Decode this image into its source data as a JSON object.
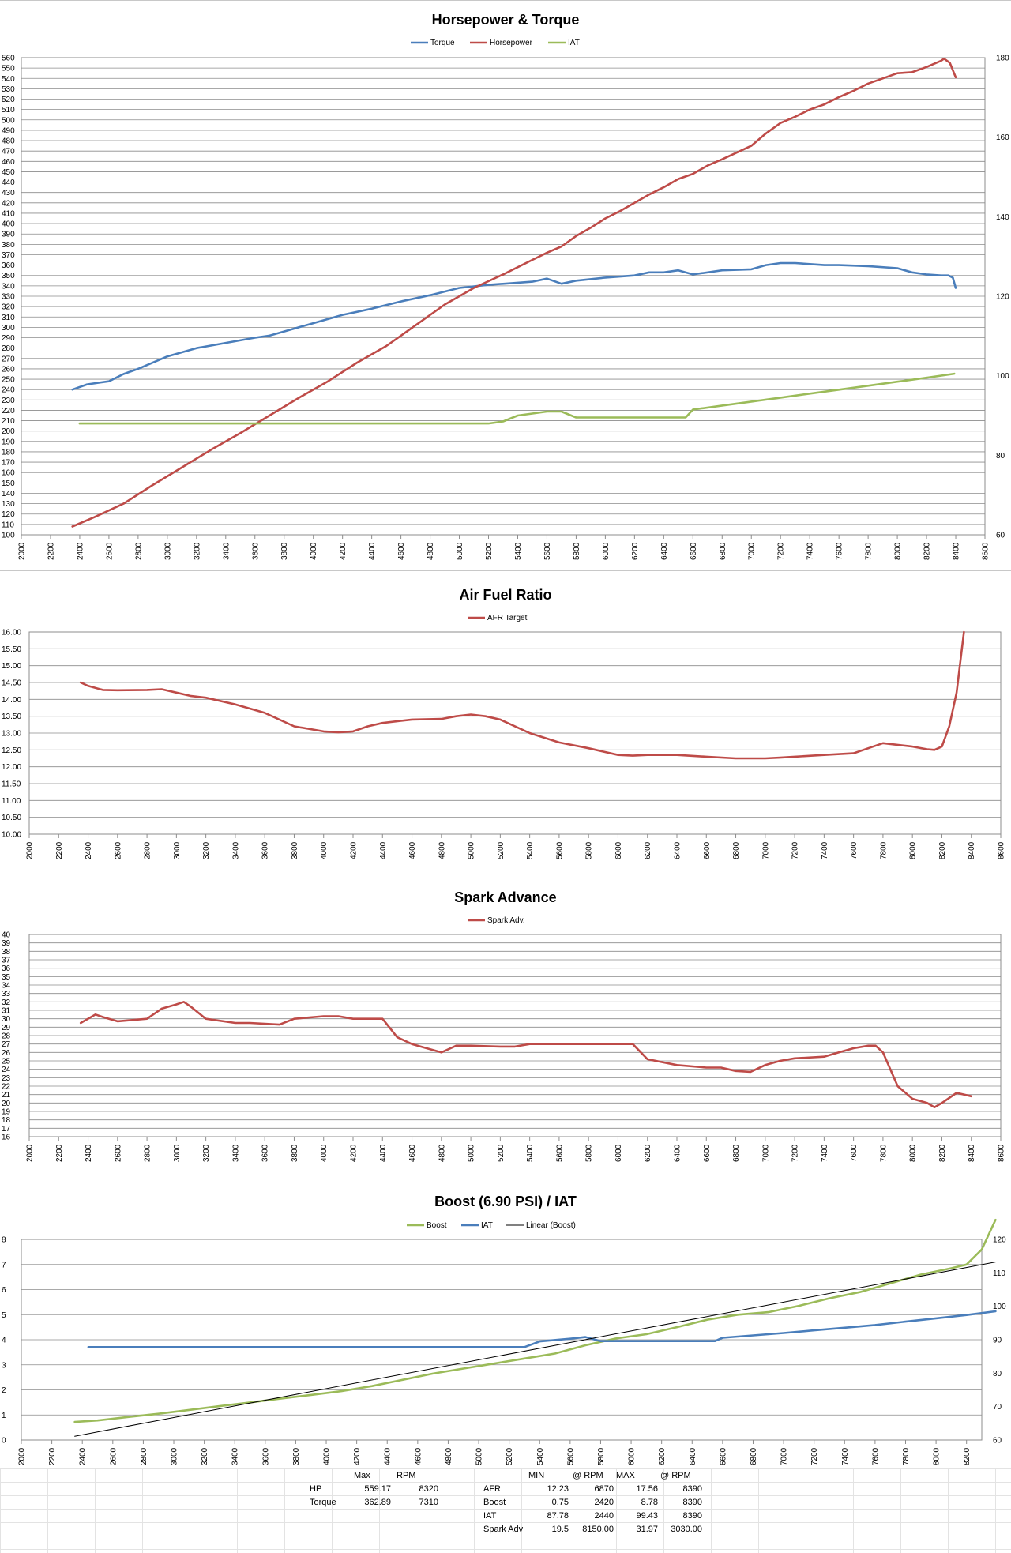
{
  "chart_data": [
    {
      "type": "line",
      "title": "Horsepower & Torque",
      "legend_position": "top-center",
      "grid": true,
      "xlim": [
        2000,
        8600
      ],
      "x_ticks": [
        2000,
        2200,
        2400,
        2600,
        2800,
        3000,
        3200,
        3400,
        3600,
        3800,
        4000,
        4200,
        4400,
        4600,
        4800,
        5000,
        5200,
        5400,
        5600,
        5800,
        6000,
        6200,
        6400,
        6600,
        6800,
        7000,
        7200,
        7400,
        7600,
        7800,
        8000,
        8200,
        8400,
        8600
      ],
      "ylim": [
        100,
        560
      ],
      "y_ticks": [
        100,
        110,
        120,
        130,
        140,
        150,
        160,
        170,
        180,
        190,
        200,
        210,
        220,
        230,
        240,
        250,
        260,
        270,
        280,
        290,
        300,
        310,
        320,
        330,
        340,
        350,
        360,
        370,
        380,
        390,
        400,
        410,
        420,
        430,
        440,
        450,
        460,
        470,
        480,
        490,
        500,
        510,
        520,
        530,
        540,
        550,
        560
      ],
      "y2lim": [
        60,
        180
      ],
      "y2_ticks": [
        60,
        80,
        100,
        120,
        140,
        160,
        180
      ],
      "series": [
        {
          "name": "Torque",
          "axis": "left",
          "color": "#4a7ebb",
          "x": [
            2350,
            2450,
            2600,
            2700,
            2800,
            3000,
            3200,
            3400,
            3600,
            3700,
            3800,
            4000,
            4200,
            4400,
            4600,
            4800,
            5000,
            5200,
            5400,
            5500,
            5600,
            5700,
            5800,
            6000,
            6200,
            6300,
            6400,
            6500,
            6600,
            6800,
            7000,
            7100,
            7200,
            7300,
            7400,
            7500,
            7600,
            7800,
            8000,
            8100,
            8200,
            8300,
            8350,
            8380,
            8400
          ],
          "y": [
            240,
            245,
            248,
            255,
            260,
            272,
            280,
            285,
            290,
            292,
            296,
            304,
            312,
            318,
            325,
            331,
            338,
            341,
            343,
            344,
            347,
            342,
            345,
            348,
            350,
            353,
            353,
            355,
            351,
            355,
            356,
            360,
            362,
            362,
            361,
            360,
            360,
            359,
            357,
            353,
            351,
            350,
            350,
            348,
            338
          ]
        },
        {
          "name": "Horsepower",
          "axis": "left",
          "color": "#be4b48",
          "x": [
            2350,
            2500,
            2700,
            2900,
            3100,
            3300,
            3500,
            3700,
            3900,
            4100,
            4300,
            4500,
            4700,
            4900,
            5100,
            5300,
            5500,
            5600,
            5700,
            5800,
            5900,
            6000,
            6100,
            6200,
            6300,
            6400,
            6500,
            6600,
            6700,
            6800,
            7000,
            7100,
            7200,
            7300,
            7400,
            7500,
            7600,
            7700,
            7800,
            7900,
            8000,
            8100,
            8200,
            8300,
            8320,
            8360,
            8400
          ],
          "y": [
            108,
            117,
            130,
            148,
            165,
            182,
            198,
            215,
            232,
            248,
            266,
            282,
            302,
            322,
            338,
            351,
            365,
            372,
            378,
            388,
            396,
            405,
            412,
            420,
            428,
            435,
            443,
            448,
            456,
            462,
            475,
            487,
            497,
            503,
            510,
            515,
            522,
            528,
            535,
            540,
            545,
            546,
            551,
            557,
            559,
            555,
            541
          ]
        },
        {
          "name": "IAT",
          "axis": "right",
          "color": "#9bbb59",
          "x": [
            2400,
            2800,
            3200,
            3600,
            4000,
            4400,
            4800,
            5200,
            5300,
            5400,
            5600,
            5700,
            5800,
            6000,
            6200,
            6400,
            6550,
            6600,
            6800,
            7000,
            7200,
            7400,
            7600,
            7800,
            8000,
            8200,
            8390
          ],
          "y": [
            88,
            88,
            88,
            88,
            88,
            88,
            88,
            88,
            88.5,
            90,
            91,
            91,
            89.5,
            89.5,
            89.5,
            89.5,
            89.5,
            91.5,
            92.5,
            93.5,
            94.5,
            95.5,
            96.5,
            97.5,
            98.5,
            99.5,
            100.5
          ]
        }
      ]
    },
    {
      "type": "line",
      "title": "Air Fuel Ratio",
      "legend_position": "top-center",
      "grid": true,
      "xlim": [
        2000,
        8600
      ],
      "x_ticks": [
        2000,
        2200,
        2400,
        2600,
        2800,
        3000,
        3200,
        3400,
        3600,
        3800,
        4000,
        4200,
        4400,
        4600,
        4800,
        5000,
        5200,
        5400,
        5600,
        5800,
        6000,
        6200,
        6400,
        6600,
        6800,
        7000,
        7200,
        7400,
        7600,
        7800,
        8000,
        8200,
        8400,
        8600
      ],
      "ylim": [
        10,
        16
      ],
      "y_ticks": [
        "10.00",
        "10.50",
        "11.00",
        "11.50",
        "12.00",
        "12.50",
        "13.00",
        "13.50",
        "14.00",
        "14.50",
        "15.00",
        "15.50",
        "16.00"
      ],
      "series": [
        {
          "name": "AFR Target",
          "color": "#be4b48",
          "x": [
            2350,
            2400,
            2500,
            2600,
            2800,
            2900,
            3000,
            3100,
            3200,
            3400,
            3600,
            3800,
            4000,
            4100,
            4200,
            4300,
            4400,
            4600,
            4800,
            4900,
            5000,
            5100,
            5200,
            5400,
            5600,
            5800,
            6000,
            6100,
            6200,
            6400,
            6600,
            6800,
            6900,
            7000,
            7100,
            7200,
            7400,
            7600,
            7700,
            7800,
            8000,
            8100,
            8150,
            8200,
            8250,
            8300,
            8350
          ],
          "y": [
            14.5,
            14.4,
            14.28,
            14.27,
            14.28,
            14.3,
            14.2,
            14.1,
            14.05,
            13.85,
            13.6,
            13.2,
            13.05,
            13.02,
            13.05,
            13.2,
            13.3,
            13.4,
            13.42,
            13.5,
            13.55,
            13.5,
            13.4,
            13.0,
            12.72,
            12.55,
            12.35,
            12.33,
            12.35,
            12.35,
            12.3,
            12.25,
            12.25,
            12.25,
            12.27,
            12.3,
            12.35,
            12.4,
            12.55,
            12.7,
            12.6,
            12.52,
            12.5,
            12.6,
            13.2,
            14.2,
            16.0
          ]
        }
      ]
    },
    {
      "type": "line",
      "title": "Spark Advance",
      "legend_position": "top-center",
      "grid": true,
      "xlim": [
        2000,
        8600
      ],
      "x_ticks": [
        2000,
        2200,
        2400,
        2600,
        2800,
        3000,
        3200,
        3400,
        3600,
        3800,
        4000,
        4200,
        4400,
        4600,
        4800,
        5000,
        5200,
        5400,
        5600,
        5800,
        6000,
        6200,
        6400,
        6600,
        6800,
        7000,
        7200,
        7400,
        7600,
        7800,
        8000,
        8200,
        8400,
        8600
      ],
      "ylim": [
        16,
        40
      ],
      "y_ticks": [
        16,
        17,
        18,
        19,
        20,
        21,
        22,
        23,
        24,
        25,
        26,
        27,
        28,
        29,
        30,
        31,
        32,
        33,
        34,
        35,
        36,
        37,
        38,
        39,
        40
      ],
      "series": [
        {
          "name": "Spark Adv.",
          "color": "#be4b48",
          "x": [
            2350,
            2450,
            2500,
            2600,
            2800,
            2900,
            3000,
            3050,
            3100,
            3200,
            3400,
            3500,
            3700,
            3800,
            4000,
            4100,
            4200,
            4400,
            4500,
            4600,
            4800,
            4900,
            5000,
            5200,
            5300,
            5400,
            5600,
            5800,
            6000,
            6100,
            6200,
            6400,
            6600,
            6700,
            6800,
            6900,
            7000,
            7100,
            7200,
            7400,
            7500,
            7600,
            7700,
            7750,
            7800,
            7900,
            8000,
            8100,
            8150,
            8200,
            8300,
            8400
          ],
          "y": [
            29.5,
            30.5,
            30.2,
            29.7,
            30.0,
            31.2,
            31.7,
            32.0,
            31.4,
            30.0,
            29.5,
            29.5,
            29.3,
            30.0,
            30.3,
            30.3,
            30.0,
            30.0,
            27.8,
            27.0,
            26.0,
            26.8,
            26.8,
            26.7,
            26.7,
            27.0,
            27.0,
            27.0,
            27.0,
            27.0,
            25.2,
            24.5,
            24.2,
            24.2,
            23.8,
            23.7,
            24.5,
            25.0,
            25.3,
            25.5,
            26.0,
            26.5,
            26.8,
            26.8,
            26.0,
            22.0,
            20.5,
            20.0,
            19.5,
            20.0,
            21.2,
            20.8
          ]
        }
      ]
    },
    {
      "type": "line",
      "title": "Boost (6.90 PSI) / IAT",
      "legend_position": "top-center",
      "grid": true,
      "xlim": [
        2000,
        8300
      ],
      "x_ticks": [
        2000,
        2200,
        2400,
        2600,
        2800,
        3000,
        3200,
        3400,
        3600,
        3800,
        4000,
        4200,
        4400,
        4600,
        4800,
        5000,
        5200,
        5400,
        5600,
        5800,
        6000,
        6200,
        6400,
        6600,
        6800,
        7000,
        7200,
        7400,
        7600,
        7800,
        8000,
        8200
      ],
      "ylim": [
        0,
        8
      ],
      "y_ticks": [
        0,
        1,
        2,
        3,
        4,
        5,
        6,
        7,
        8
      ],
      "y2lim": [
        60,
        120
      ],
      "y2_ticks": [
        60,
        70,
        80,
        90,
        100,
        110,
        120
      ],
      "series": [
        {
          "name": "Boost",
          "axis": "left",
          "color": "#9bbb59",
          "x": [
            2350,
            2500,
            2700,
            2900,
            3100,
            3300,
            3500,
            3700,
            3900,
            4100,
            4300,
            4500,
            4700,
            4900,
            5100,
            5300,
            5500,
            5700,
            5900,
            6100,
            6300,
            6500,
            6700,
            6900,
            7100,
            7300,
            7500,
            7700,
            7900,
            8100,
            8200,
            8300,
            8390
          ],
          "y": [
            0.72,
            0.78,
            0.92,
            1.05,
            1.2,
            1.35,
            1.5,
            1.65,
            1.8,
            1.95,
            2.15,
            2.4,
            2.65,
            2.85,
            3.05,
            3.25,
            3.45,
            3.78,
            4.05,
            4.22,
            4.5,
            4.8,
            5.0,
            5.1,
            5.35,
            5.65,
            5.9,
            6.25,
            6.6,
            6.85,
            7.0,
            7.6,
            8.78
          ]
        },
        {
          "name": "IAT",
          "axis": "right",
          "color": "#4a7ebb",
          "x": [
            2440,
            2800,
            3200,
            3600,
            4000,
            4400,
            4800,
            5200,
            5300,
            5400,
            5600,
            5700,
            5800,
            6000,
            6200,
            6400,
            6500,
            6550,
            6600,
            6800,
            7000,
            7200,
            7400,
            7600,
            7800,
            8000,
            8200,
            8390
          ],
          "y": [
            87.8,
            87.8,
            87.8,
            87.8,
            87.8,
            87.8,
            87.8,
            87.8,
            87.8,
            89.5,
            90.3,
            90.8,
            89.6,
            89.6,
            89.6,
            89.6,
            89.6,
            89.6,
            90.6,
            91.3,
            92.0,
            92.8,
            93.6,
            94.4,
            95.4,
            96.4,
            97.4,
            98.5
          ]
        },
        {
          "name": "Linear (Boost)",
          "axis": "left",
          "color": "#000000",
          "x": [
            2350,
            8390
          ],
          "y": [
            0.15,
            7.1
          ]
        }
      ]
    }
  ],
  "stats_table": {
    "max_header": "Max",
    "rpm_header": "RPM",
    "rows_left": [
      {
        "label": "HP",
        "max": "559.17",
        "rpm": "8320"
      },
      {
        "label": "Torque",
        "max": "362.89",
        "rpm": "7310"
      }
    ],
    "min_header": "MIN",
    "min_rpm_header": "@ RPM",
    "max2_header": "MAX",
    "max_rpm_header": "@ RPM",
    "rows_right": [
      {
        "label": "AFR",
        "min": "12.23",
        "min_rpm": "6870",
        "max": "17.56",
        "max_rpm": "8390"
      },
      {
        "label": "Boost",
        "min": "0.75",
        "min_rpm": "2420",
        "max": "8.78",
        "max_rpm": "8390"
      },
      {
        "label": "IAT",
        "min": "87.78",
        "min_rpm": "2440",
        "max": "99.43",
        "max_rpm": "8390"
      },
      {
        "label": "Spark Adv",
        "min": "19.5",
        "min_rpm": "8150.00",
        "max": "31.97",
        "max_rpm": "3030.00"
      }
    ]
  }
}
